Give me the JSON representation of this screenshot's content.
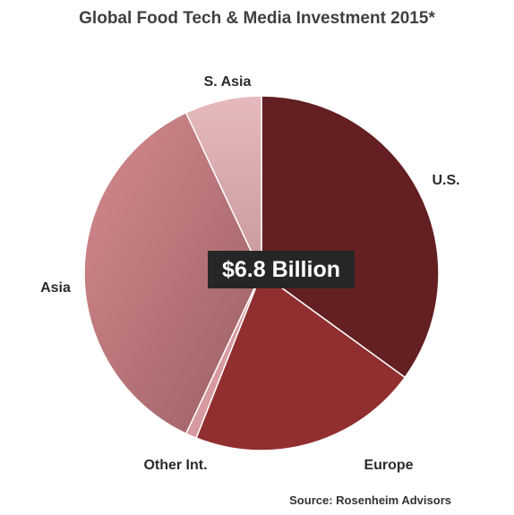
{
  "chart_data": {
    "type": "pie",
    "title": "Global Food Tech & Media Investment 2015*",
    "center_label": "$6.8 Billion",
    "source": "Source: Rosenheim Advisors",
    "slices": [
      {
        "label": "U.S.",
        "value": 35.0,
        "color": "#631f22"
      },
      {
        "label": "Europe",
        "value": 21.0,
        "color": "#912f30"
      },
      {
        "label": "Other Int.",
        "value": 1.0,
        "color": "#d79aa0"
      },
      {
        "label": "Asia",
        "value": 36.0,
        "color": "#c57f83"
      },
      {
        "label": "S. Asia",
        "value": 7.0,
        "color": "#e0b0b3"
      }
    ]
  }
}
